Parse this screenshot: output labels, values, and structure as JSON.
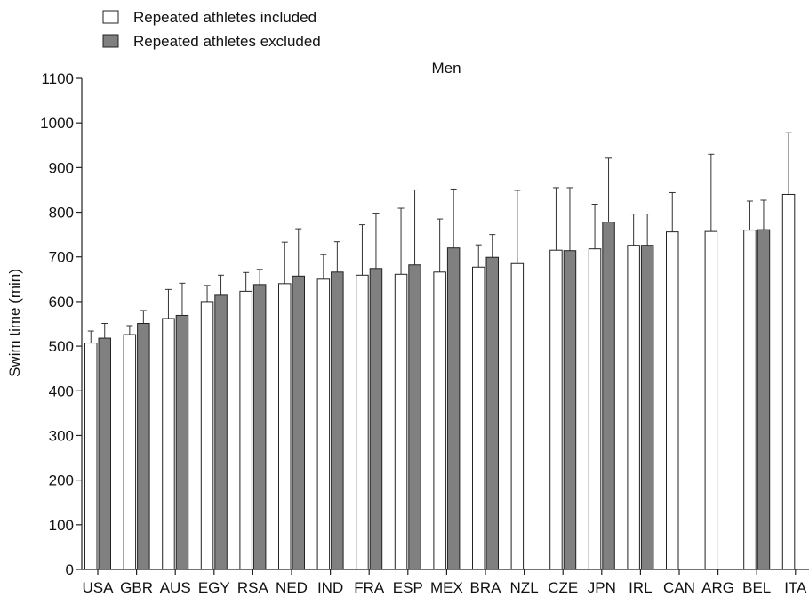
{
  "chart_data": {
    "type": "bar",
    "title": "Men",
    "ylabel": "Swim time (min)",
    "xlabel": "",
    "ylim": [
      0,
      1100
    ],
    "ytick_step": 100,
    "grid": false,
    "legend_position": "top-left",
    "error_bars": true,
    "categories": [
      "USA",
      "GBR",
      "AUS",
      "EGY",
      "RSA",
      "NED",
      "IND",
      "FRA",
      "ESP",
      "MEX",
      "BRA",
      "NZL",
      "CZE",
      "JPN",
      "IRL",
      "CAN",
      "ARG",
      "BEL",
      "ITA"
    ],
    "series": [
      {
        "name": "Repeated athletes included",
        "color": "#ffffff",
        "values": [
          507,
          526,
          562,
          600,
          623,
          640,
          650,
          659,
          661,
          666,
          677,
          685,
          715,
          718,
          726,
          756,
          757,
          760,
          840
        ],
        "errors": [
          27,
          20,
          65,
          36,
          42,
          93,
          55,
          113,
          148,
          119,
          50,
          164,
          140,
          100,
          70,
          88,
          173,
          65,
          138
        ]
      },
      {
        "name": "Repeated athletes excluded",
        "color": "#808080",
        "values": [
          518,
          551,
          569,
          614,
          638,
          657,
          666,
          674,
          682,
          720,
          699,
          null,
          714,
          778,
          726,
          null,
          null,
          761,
          null
        ],
        "errors": [
          33,
          29,
          72,
          45,
          34,
          106,
          68,
          124,
          168,
          132,
          51,
          null,
          141,
          143,
          70,
          null,
          null,
          66,
          null
        ]
      }
    ]
  }
}
